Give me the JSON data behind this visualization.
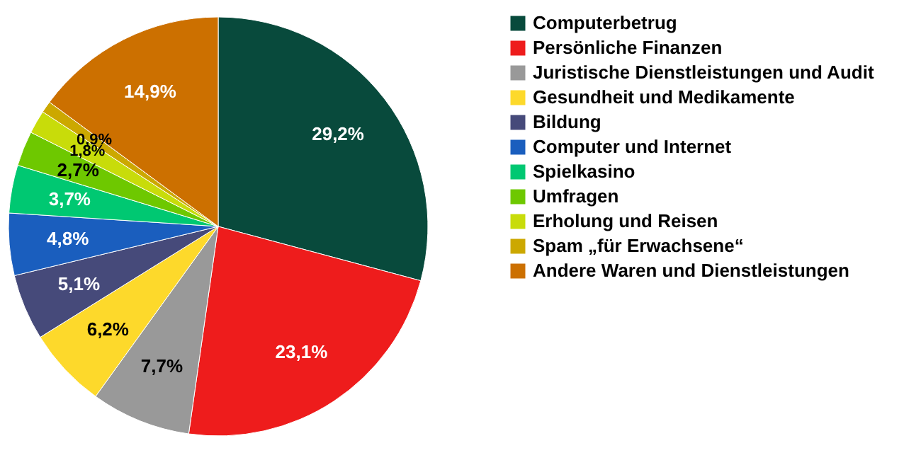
{
  "chart_data": {
    "type": "pie",
    "categories": [
      "Computerbetrug",
      "Persönliche Finanzen",
      "Juristische Dienstleistungen und Audit",
      "Gesundheit und Medikamente",
      "Bildung",
      "Computer und Internet",
      "Spielkasino",
      "Umfragen",
      "Erholung und Reisen",
      "Spam „für Erwachsene“",
      "Andere Waren und Dienstleistungen"
    ],
    "values": [
      29.2,
      23.1,
      7.7,
      6.2,
      5.1,
      4.8,
      3.7,
      2.7,
      1.8,
      0.9,
      14.9
    ],
    "value_labels": [
      "29,2%",
      "23,1%",
      "7,7%",
      "6,2%",
      "5,1%",
      "4,8%",
      "3,7%",
      "2,7%",
      "1,8%",
      "0,9%",
      "14,9%"
    ],
    "colors": [
      "#084a3c",
      "#ee1c1c",
      "#999999",
      "#fdd92b",
      "#464a7a",
      "#1a5ebe",
      "#00c872",
      "#6ec800",
      "#c8dc0a",
      "#cca800",
      "#cc7000"
    ],
    "legend": "right"
  }
}
